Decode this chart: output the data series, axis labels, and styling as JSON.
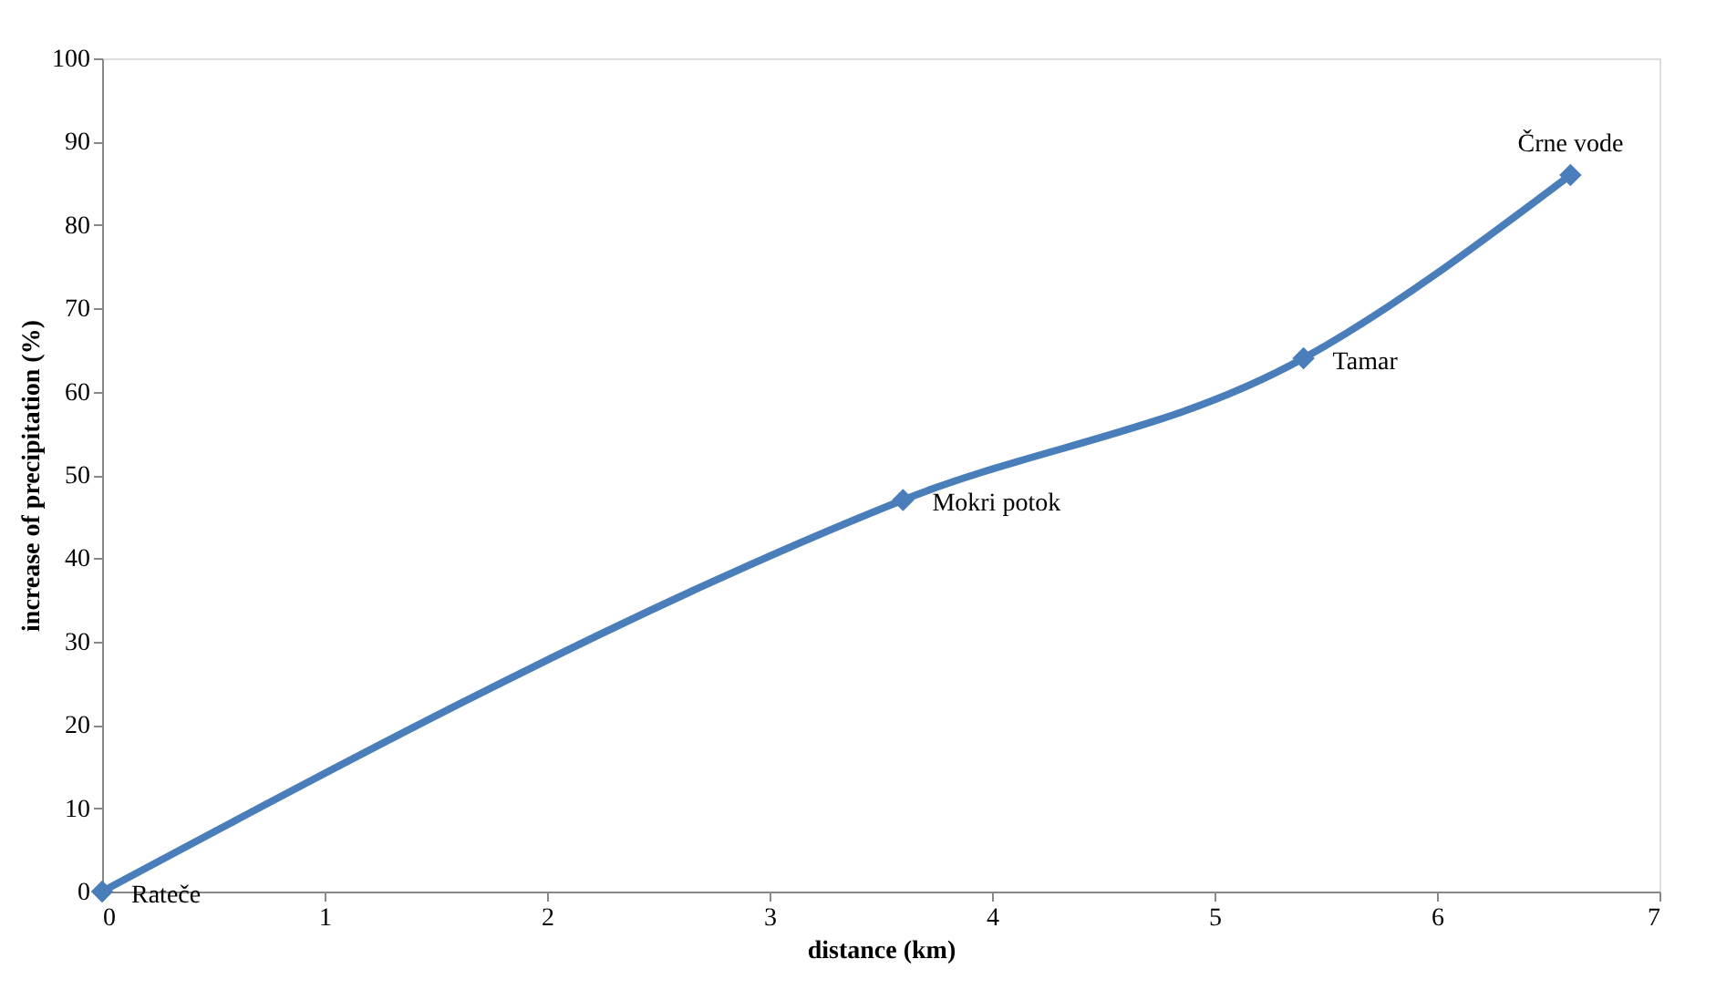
{
  "chart_data": {
    "type": "line",
    "xlabel": "distance (km)",
    "ylabel": "increase of precipitation (%)",
    "x": [
      0,
      3.6,
      5.4,
      6.6
    ],
    "series": [
      {
        "color": "#4a7ebb",
        "values": [
          0,
          47,
          64,
          86
        ]
      }
    ],
    "xlim": [
      0,
      7
    ],
    "xticks": [
      0,
      1,
      2,
      3,
      4,
      5,
      6,
      7
    ],
    "ylim": [
      0,
      100
    ],
    "yticks": [
      0,
      10,
      20,
      30,
      40,
      50,
      60,
      70,
      80,
      90,
      100
    ],
    "grid": false,
    "marker": "diamond",
    "line_style": "solid",
    "annotations": [
      {
        "text": "Rateče",
        "x": 0,
        "y": 0
      },
      {
        "text": "Mokri potok",
        "x": 3.6,
        "y": 47
      },
      {
        "text": "Tamar",
        "x": 5.4,
        "y": 64
      },
      {
        "text": "Črne vode",
        "x": 6.6,
        "y": 86
      }
    ]
  }
}
